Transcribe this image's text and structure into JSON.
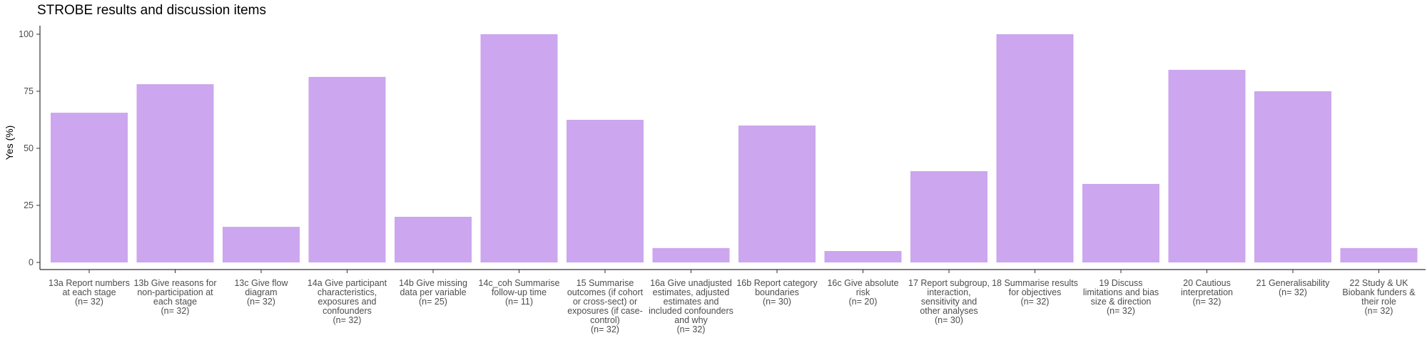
{
  "chart_data": {
    "type": "bar",
    "title": "STROBE results and discussion items",
    "xlabel": "",
    "ylabel": "Yes (%)",
    "ylim": [
      0,
      100
    ],
    "yticks": [
      0,
      25,
      50,
      75,
      100
    ],
    "grid": false,
    "bar_color": "#cca6ee",
    "categories": [
      "13a Report numbers\nat each stage\n(n= 32)",
      "13b Give reasons for\nnon-participation at\neach stage\n(n= 32)",
      "13c Give flow\ndiagram\n(n= 32)",
      "14a Give participant\ncharacteristics,\nexposures and\nconfounders\n(n= 32)",
      "14b Give missing\ndata per variable\n(n= 25)",
      "14c_coh Summarise\nfollow-up time\n(n= 11)",
      "15 Summarise\noutcomes (if cohort\nor cross-sect) or\nexposures (if case-\ncontrol)\n(n= 32)",
      "16a Give unadjusted\nestimates, adjusted\nestimates and\nincluded confounders\nand why\n(n= 32)",
      "16b Report category\nboundaries\n(n= 30)",
      "16c Give absolute\nrisk\n(n= 20)",
      "17 Report subgroup,\ninteraction,\nsensitivity and\nother analyses\n(n= 30)",
      "18 Summarise results\nfor objectives\n(n= 32)",
      "19 Discuss\nlimitations and bias\nsize & direction\n(n= 32)",
      "20 Cautious\ninterpretation\n(n= 32)",
      "21 Generalisability\n(n= 32)",
      "22 Study & UK\nBiobank funders &\ntheir role\n(n= 32)"
    ],
    "values": [
      65.6,
      78.1,
      15.6,
      81.3,
      20.0,
      100.0,
      62.5,
      6.3,
      60.0,
      5.0,
      40.0,
      100.0,
      34.4,
      84.4,
      75.0,
      6.3
    ]
  }
}
